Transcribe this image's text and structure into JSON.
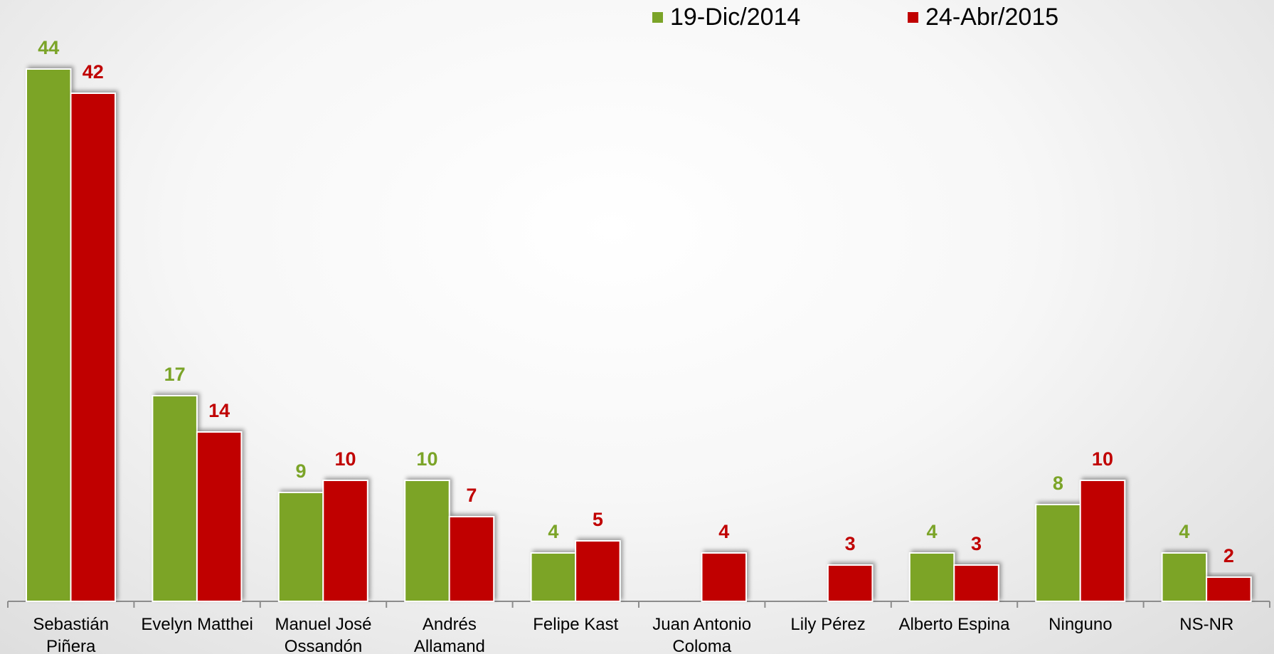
{
  "chart_data": {
    "type": "bar",
    "categories": [
      "Sebastián Piñera",
      "Evelyn Matthei",
      "Manuel José Ossandón",
      "Andrés Allamand",
      "Felipe Kast",
      "Juan Antonio Coloma",
      "Lily Pérez",
      "Alberto Espina",
      "Ninguno",
      "NS-NR"
    ],
    "series": [
      {
        "name": "19-Dic/2014",
        "color": "#7ba428",
        "values": [
          44,
          17,
          9,
          10,
          4,
          null,
          null,
          4,
          8,
          4
        ]
      },
      {
        "name": "24-Abr/2015",
        "color": "#c00000",
        "values": [
          42,
          14,
          10,
          7,
          5,
          4,
          3,
          3,
          10,
          2
        ]
      }
    ],
    "ylim": [
      0,
      45
    ]
  }
}
